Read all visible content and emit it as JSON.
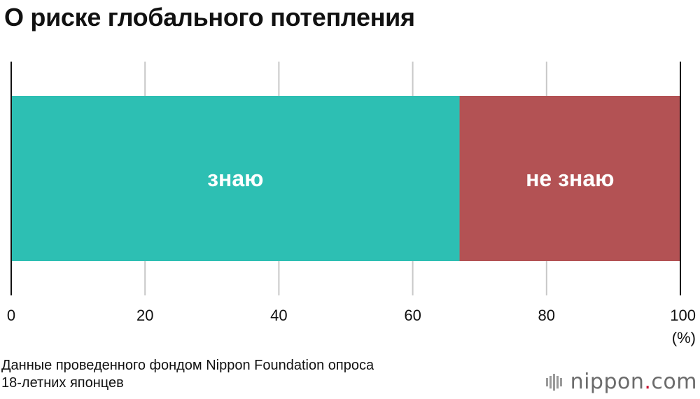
{
  "title": "О риске глобального потепления",
  "chart_data": {
    "type": "bar",
    "orientation": "horizontal-stacked",
    "segments": [
      {
        "label": "знаю",
        "value": 67,
        "color": "#2dbfb3"
      },
      {
        "label": "не знаю",
        "value": 33,
        "color": "#b35254"
      }
    ],
    "xlim": [
      0,
      100
    ],
    "xticks": [
      "0",
      "20",
      "40",
      "60",
      "80",
      "100"
    ],
    "xunit": "(%)",
    "grid": true
  },
  "source": {
    "line1": "Данные проведенного фондом Nippon Foundation опроса",
    "line2": "18-летних японцев"
  },
  "logo": {
    "name": "nippon",
    "dot": ".",
    "domain": "com",
    "icon": "bars-logo-icon"
  }
}
